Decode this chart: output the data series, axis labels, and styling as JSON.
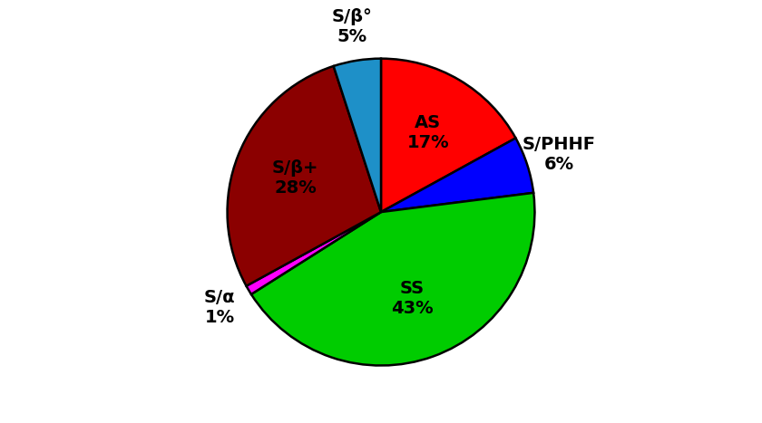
{
  "values": [
    17,
    6,
    43,
    1,
    28,
    5
  ],
  "colors": [
    "#ff0000",
    "#0000ff",
    "#00cc00",
    "#ff00ff",
    "#8b0000",
    "#1e90c8"
  ],
  "inner_labels": [
    "AS\n17%",
    null,
    "SS\n43%",
    null,
    "S/β+\n28%",
    null
  ],
  "outer_labels": [
    null,
    "S/PHHF\n6%",
    null,
    "S/α\n1%",
    null,
    "S/β°\n5%"
  ],
  "startangle": 90,
  "figsize": [
    8.4,
    4.67
  ],
  "dpi": 100,
  "fontsize": 14,
  "background": "white"
}
